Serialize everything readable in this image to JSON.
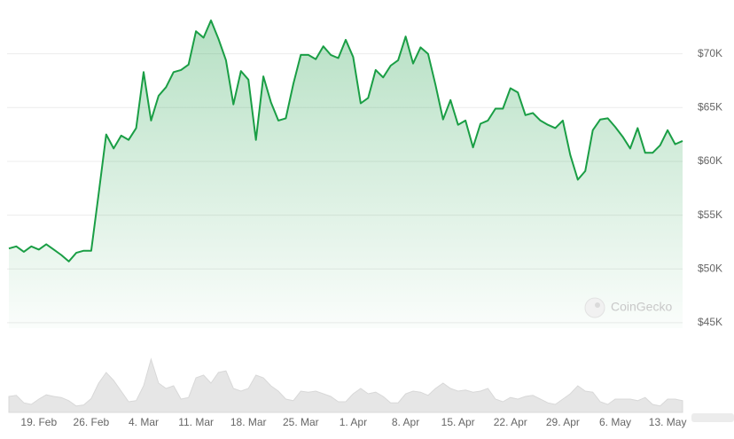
{
  "chart_data": {
    "type": "area",
    "watermark": "CoinGecko",
    "categories": [
      null,
      null,
      null,
      null,
      "19. Feb",
      null,
      null,
      null,
      null,
      null,
      null,
      "26. Feb",
      null,
      null,
      null,
      null,
      null,
      null,
      "4. Mar",
      null,
      null,
      null,
      null,
      null,
      null,
      "11. Mar",
      null,
      null,
      null,
      null,
      null,
      null,
      "18. Mar",
      null,
      null,
      null,
      null,
      null,
      null,
      "25. Mar",
      null,
      null,
      null,
      null,
      null,
      null,
      "1. Apr",
      null,
      null,
      null,
      null,
      null,
      null,
      "8. Apr",
      null,
      null,
      null,
      null,
      null,
      null,
      "15. Apr",
      null,
      null,
      null,
      null,
      null,
      null,
      "22. Apr",
      null,
      null,
      null,
      null,
      null,
      null,
      "29. Apr",
      null,
      null,
      null,
      null,
      null,
      null,
      "6. May",
      null,
      null,
      null,
      null,
      null,
      null,
      "13. May",
      null,
      null
    ],
    "series": [
      {
        "color": "#1a9e45",
        "values": [
          51900,
          52100,
          51600,
          52100,
          51800,
          52300,
          51800,
          51300,
          50700,
          51500,
          51700,
          51700,
          57000,
          62500,
          61200,
          62400,
          62000,
          63100,
          68300,
          63800,
          66100,
          66900,
          68300,
          68500,
          69000,
          72100,
          71500,
          73100,
          71400,
          69400,
          65300,
          68400,
          67600,
          62000,
          67900,
          65500,
          63800,
          64000,
          67200,
          69900,
          69900,
          69500,
          70700,
          69900,
          69600,
          71300,
          69700,
          65400,
          65900,
          68500,
          67800,
          68900,
          69400,
          71600,
          69100,
          70600,
          70000,
          67100,
          63900,
          65700,
          63400,
          63800,
          61300,
          63500,
          63800,
          64900,
          64900,
          66800,
          66400,
          64300,
          64500,
          63800,
          63400,
          63100,
          63800,
          60600,
          58300,
          59100,
          62900,
          63900,
          64000,
          63200,
          62300,
          61200,
          63100,
          60800,
          60800,
          61500,
          62900,
          61600,
          61900
        ]
      },
      {
        "color": "#e6e6e6",
        "axis": "volume",
        "values": [
          30000000000.0,
          32000000000.0,
          18000000000.0,
          15000000000.0,
          25000000000.0,
          33000000000.0,
          30000000000.0,
          28000000000.0,
          22000000000.0,
          12000000000.0,
          14000000000.0,
          26000000000.0,
          55000000000.0,
          75000000000.0,
          60000000000.0,
          40000000000.0,
          20000000000.0,
          22000000000.0,
          50000000000.0,
          100000000000.0,
          55000000000.0,
          45000000000.0,
          50000000000.0,
          25000000000.0,
          28000000000.0,
          65000000000.0,
          70000000000.0,
          55000000000.0,
          75000000000.0,
          78000000000.0,
          45000000000.0,
          40000000000.0,
          45000000000.0,
          70000000000.0,
          65000000000.0,
          50000000000.0,
          40000000000.0,
          25000000000.0,
          22000000000.0,
          40000000000.0,
          38000000000.0,
          40000000000.0,
          35000000000.0,
          30000000000.0,
          20000000000.0,
          20000000000.0,
          35000000000.0,
          45000000000.0,
          35000000000.0,
          38000000000.0,
          30000000000.0,
          18000000000.0,
          18000000000.0,
          35000000000.0,
          40000000000.0,
          38000000000.0,
          32000000000.0,
          45000000000.0,
          55000000000.0,
          45000000000.0,
          40000000000.0,
          42000000000.0,
          38000000000.0,
          40000000000.0,
          45000000000.0,
          25000000000.0,
          20000000000.0,
          28000000000.0,
          25000000000.0,
          30000000000.0,
          32000000000.0,
          25000000000.0,
          18000000000.0,
          15000000000.0,
          25000000000.0,
          35000000000.0,
          50000000000.0,
          40000000000.0,
          38000000000.0,
          20000000000.0,
          15000000000.0,
          25000000000.0,
          25000000000.0,
          25000000000.0,
          22000000000.0,
          28000000000.0,
          15000000000.0,
          12000000000.0,
          25000000000.0,
          25000000000.0,
          22000000000.0
        ]
      }
    ],
    "ylim": [
      44500,
      75000
    ],
    "yticks": [
      {
        "value": 45000,
        "label": "$45K"
      },
      {
        "value": 50000,
        "label": "$50K"
      },
      {
        "value": 55000,
        "label": "$55K"
      },
      {
        "value": 60000,
        "label": "$60K"
      },
      {
        "value": 65000,
        "label": "$65K"
      },
      {
        "value": 70000,
        "label": "$70K"
      }
    ],
    "grid": true
  }
}
